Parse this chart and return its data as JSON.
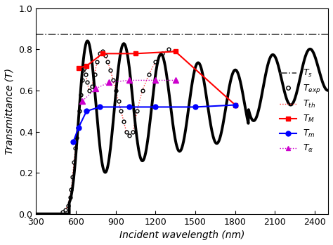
{
  "title": "",
  "xlabel": "Incident wavelength (nm)",
  "ylabel": "Transmittance (T)",
  "xlim": [
    300,
    2500
  ],
  "ylim": [
    0.0,
    1.0
  ],
  "xticks": [
    300,
    600,
    900,
    1200,
    1500,
    1800,
    2100,
    2400
  ],
  "yticks": [
    0.0,
    0.2,
    0.4,
    0.6,
    0.8,
    1.0
  ],
  "Ts_value": 0.875,
  "T_exp_x": [
    500,
    520,
    540,
    555,
    565,
    575,
    585,
    595,
    605,
    615,
    625,
    635,
    645,
    655,
    665,
    675,
    685,
    700,
    720,
    740,
    760,
    780,
    800,
    820,
    840,
    860,
    880,
    900,
    920,
    940,
    960,
    980,
    1000,
    1030,
    1060,
    1100,
    1150,
    1200,
    1250,
    1300,
    1350
  ],
  "T_exp_y": [
    0.01,
    0.02,
    0.04,
    0.08,
    0.12,
    0.18,
    0.25,
    0.32,
    0.37,
    0.42,
    0.5,
    0.58,
    0.65,
    0.7,
    0.71,
    0.68,
    0.64,
    0.6,
    0.62,
    0.68,
    0.74,
    0.78,
    0.79,
    0.77,
    0.74,
    0.7,
    0.65,
    0.6,
    0.55,
    0.5,
    0.45,
    0.4,
    0.38,
    0.4,
    0.5,
    0.6,
    0.68,
    0.74,
    0.78,
    0.8,
    0.79
  ],
  "T_th_x": [
    500,
    520,
    540,
    555,
    565,
    575,
    585,
    595,
    605,
    615,
    625,
    635,
    645,
    655,
    665,
    675,
    685,
    700,
    720,
    740,
    760,
    780,
    800,
    820,
    840,
    860,
    880,
    900,
    920,
    940,
    960,
    980,
    1000,
    1030,
    1060,
    1100,
    1150,
    1200,
    1250,
    1300,
    1350
  ],
  "T_th_y": [
    0.01,
    0.02,
    0.04,
    0.08,
    0.12,
    0.18,
    0.25,
    0.32,
    0.37,
    0.42,
    0.5,
    0.58,
    0.65,
    0.7,
    0.71,
    0.68,
    0.64,
    0.6,
    0.62,
    0.68,
    0.74,
    0.78,
    0.79,
    0.77,
    0.74,
    0.7,
    0.65,
    0.6,
    0.55,
    0.5,
    0.45,
    0.4,
    0.38,
    0.4,
    0.5,
    0.6,
    0.68,
    0.74,
    0.78,
    0.8,
    0.79
  ],
  "TM_x": [
    620,
    680,
    800,
    1050,
    1350,
    1800
  ],
  "TM_y": [
    0.71,
    0.72,
    0.78,
    0.78,
    0.79,
    0.53
  ],
  "Tm_x": [
    580,
    620,
    680,
    780,
    1000,
    1200,
    1500,
    1800
  ],
  "Tm_y": [
    0.35,
    0.42,
    0.5,
    0.52,
    0.52,
    0.52,
    0.52,
    0.53
  ],
  "Talpha_x": [
    650,
    750,
    850,
    1000,
    1200,
    1350
  ],
  "Talpha_y": [
    0.55,
    0.61,
    0.64,
    0.65,
    0.65,
    0.65
  ],
  "big_curve_color": "#000000",
  "Ts_color": "#404040",
  "T_exp_color": "#404040",
  "T_th_color": "#ff3333",
  "TM_color": "#ff0000",
  "Tm_color": "#0000ff",
  "Talpha_color": "#cc00cc"
}
